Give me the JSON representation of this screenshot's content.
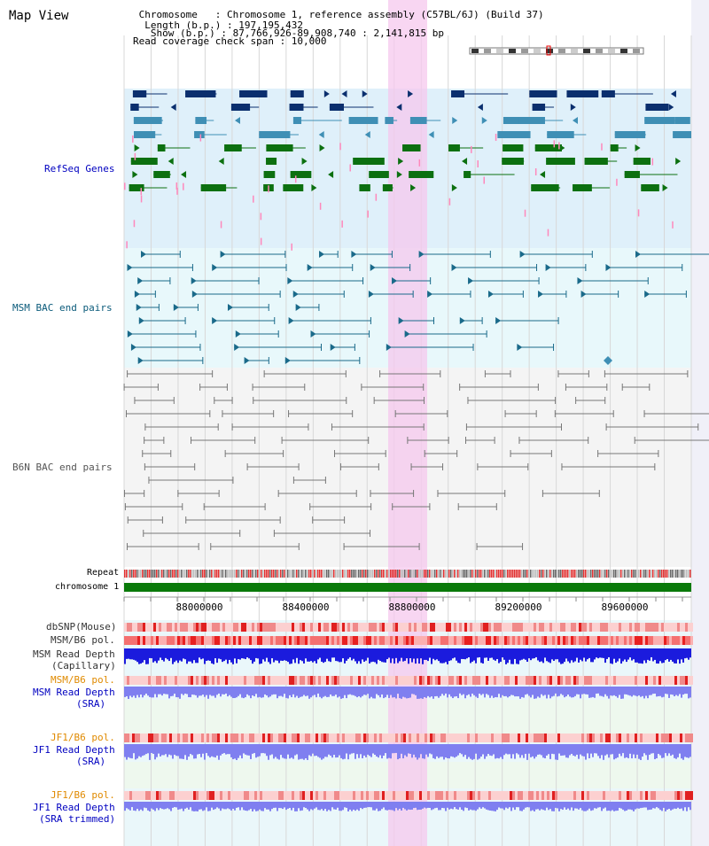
{
  "header": {
    "title": "Map View",
    "chromosome_line": " Chromosome   : Chromosome 1, reference assembly (C57BL/6J) (Build 37)",
    "length_line": "  Length (b.p.) : 197,195,432",
    "show_line": "   Show (b.p.) : 87,766,926-89,908,740 : 2,141,815 bp",
    "coverage_line": "Read coverage check span : 10,000"
  },
  "tracks": {
    "refseq": "RefSeq Genes",
    "msm_bac": "MSM BAC end pairs",
    "b6n_bac": "B6N BAC end pairs",
    "repeat": "Repeat",
    "chromosome": "chromosome 1",
    "dbsnp": "dbSNP(Mouse)",
    "msm_pol": "MSM/B6 pol.",
    "msm_depth_cap_1": "MSM Read Depth",
    "msm_depth_cap_2": "(Capillary)",
    "msm_pol_sra": "MSM/B6 pol.",
    "msm_depth_sra_1": "MSM Read Depth",
    "msm_depth_sra_2": "(SRA)",
    "jf1_pol_1": "JF1/B6 pol.",
    "jf1_depth_1": "JF1 Read Depth",
    "jf1_depth_sra": "(SRA)",
    "jf1_pol_2": "JF1/B6 pol.",
    "jf1_depth_2": "JF1 Read Depth",
    "jf1_depth_trim": "(SRA trimmed)"
  },
  "axis": {
    "ticks": [
      "88000000",
      "88400000",
      "88800000",
      "89200000",
      "89600000"
    ]
  },
  "colors": {
    "refseq_bg": "#dff0fa",
    "bac_bg": "#e8f8fb",
    "b6n_bg": "#f4f4f4",
    "highlight": "#f6c8ee",
    "chromosome": "#0a7a0a",
    "gene_dark": "#0b2f6e",
    "gene_mid": "#3f8fb5",
    "gene_green": "#0c7010",
    "msm_bac": "#1a6a8a",
    "b6n_bac": "#777777",
    "depth_dark": "#1b1bdd",
    "depth_light": "#7f7ff0",
    "pol_red": "#f04040",
    "label_blue": "#0000c0",
    "label_teal": "#0a5a7a",
    "label_orange": "#e08a00"
  }
}
